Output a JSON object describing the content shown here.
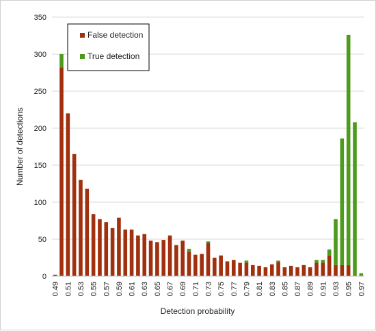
{
  "chart_data": {
    "type": "bar",
    "title": "",
    "xlabel": "Detection probability",
    "ylabel": "Number of detections",
    "ylim": [
      0,
      350
    ],
    "yticks": [
      0,
      50,
      100,
      150,
      200,
      250,
      300,
      350
    ],
    "grid": true,
    "legend_position": "top-left",
    "categories": [
      "0.49",
      "0.50",
      "0.51",
      "0.52",
      "0.53",
      "0.54",
      "0.55",
      "0.56",
      "0.57",
      "0.58",
      "0.59",
      "0.60",
      "0.61",
      "0.62",
      "0.63",
      "0.64",
      "0.65",
      "0.66",
      "0.67",
      "0.68",
      "0.69",
      "0.70",
      "0.71",
      "0.72",
      "0.73",
      "0.74",
      "0.75",
      "0.76",
      "0.77",
      "0.78",
      "0.79",
      "0.80",
      "0.81",
      "0.82",
      "0.83",
      "0.84",
      "0.85",
      "0.86",
      "0.87",
      "0.88",
      "0.89",
      "0.90",
      "0.91",
      "0.92",
      "0.93",
      "0.94",
      "0.95",
      "0.96",
      "0.97"
    ],
    "tick_labels": [
      "0.49",
      "",
      "0.51",
      "",
      "0.53",
      "",
      "0.55",
      "",
      "0.57",
      "",
      "0.59",
      "",
      "0.61",
      "",
      "0.63",
      "",
      "0.65",
      "",
      "0.67",
      "",
      "0.69",
      "",
      "0.71",
      "",
      "0.73",
      "",
      "0.75",
      "",
      "0.77",
      "",
      "0.79",
      "",
      "0.81",
      "",
      "0.83",
      "",
      "0.85",
      "",
      "0.87",
      "",
      "0.89",
      "",
      "0.91",
      "",
      "0.93",
      "",
      "0.95",
      "",
      "0.97"
    ],
    "series": [
      {
        "name": "False detection",
        "color": "#a0300e",
        "values": [
          2,
          282,
          220,
          165,
          130,
          118,
          84,
          77,
          73,
          65,
          79,
          63,
          63,
          55,
          57,
          48,
          46,
          49,
          55,
          42,
          48,
          33,
          29,
          30,
          45,
          25,
          28,
          20,
          22,
          18,
          18,
          15,
          14,
          12,
          16,
          19,
          12,
          14,
          12,
          15,
          12,
          18,
          18,
          28,
          15,
          15,
          15,
          0,
          0
        ]
      },
      {
        "name": "True detection",
        "color": "#4e9a1c",
        "values": [
          0,
          18,
          0,
          0,
          0,
          0,
          0,
          0,
          0,
          0,
          0,
          0,
          0,
          0,
          0,
          0,
          0,
          0,
          0,
          0,
          0,
          4,
          0,
          0,
          2,
          0,
          0,
          0,
          0,
          0,
          3,
          0,
          0,
          0,
          0,
          2,
          0,
          0,
          0,
          0,
          0,
          4,
          4,
          8,
          62,
          171,
          311,
          208,
          4
        ]
      }
    ]
  }
}
